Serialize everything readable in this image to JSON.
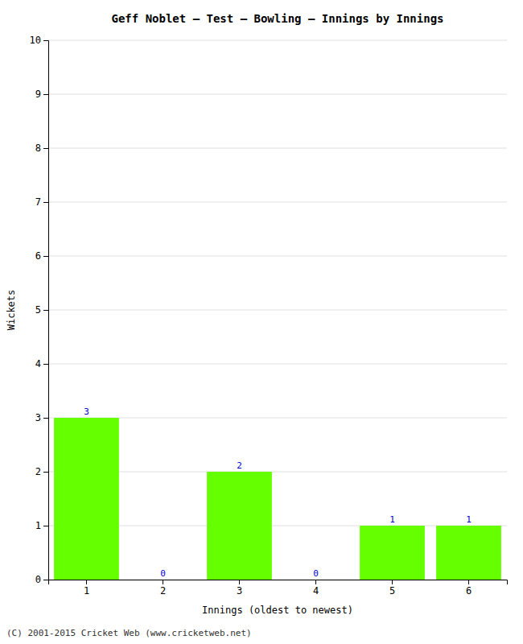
{
  "chart_data": {
    "type": "bar",
    "title": "Geff Noblet – Test – Bowling – Innings by Innings",
    "x_label": "Innings (oldest to newest)",
    "y_label": "Wickets",
    "categories": [
      "1",
      "2",
      "3",
      "4",
      "5",
      "6"
    ],
    "values": [
      3,
      0,
      2,
      0,
      1,
      1
    ],
    "color": "#66ff00",
    "ylim": [
      0,
      10
    ],
    "yticks": [
      0,
      1,
      2,
      3,
      4,
      5,
      6,
      7,
      8,
      9,
      10
    ],
    "grid": true,
    "data_labels": true,
    "annotations": [
      "(C) 2001-2015 Cricket Web (www.cricketweb.net)"
    ]
  }
}
